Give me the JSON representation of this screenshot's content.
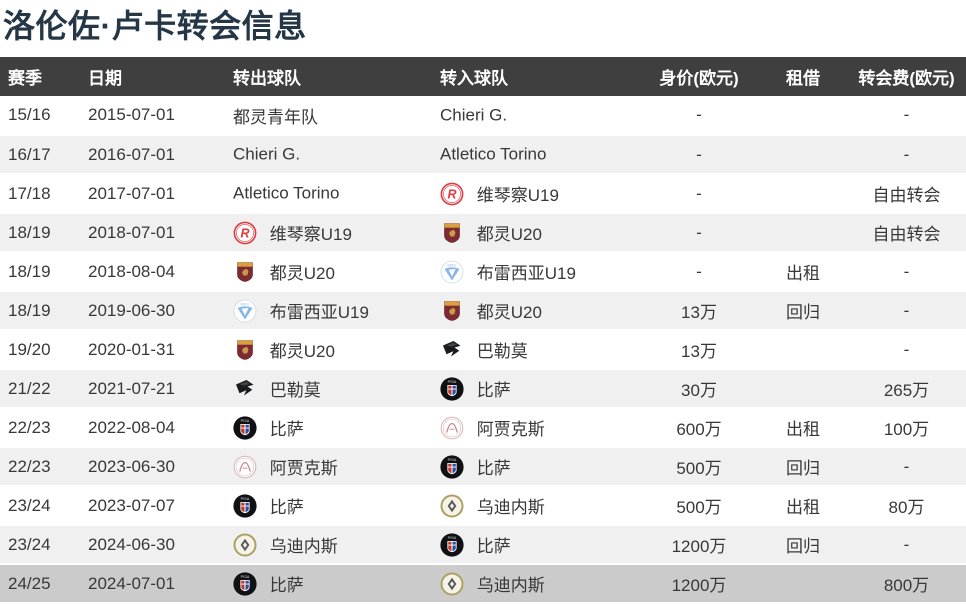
{
  "title": "洛伦佐·卢卡转会信息",
  "colors": {
    "header_bg": "#3f3f3f",
    "header_text": "#ffffff",
    "row_stripe": "#f0f0f0",
    "row_highlight": "#cbcbcb",
    "body_text": "#383838",
    "title_color": "#253746"
  },
  "table": {
    "columns": [
      "赛季",
      "日期",
      "转出球队",
      "转入球队",
      "身价(欧元)",
      "租借",
      "转会费(欧元)"
    ],
    "rows": [
      {
        "season": "15/16",
        "date": "2015-07-01",
        "from": {
          "name": "都灵青年队",
          "icon": "none"
        },
        "to": {
          "name": "Chieri G.",
          "icon": "none"
        },
        "value": "-",
        "loan": "",
        "fee": "-",
        "highlight": false
      },
      {
        "season": "16/17",
        "date": "2016-07-01",
        "from": {
          "name": "Chieri G.",
          "icon": "none"
        },
        "to": {
          "name": "Atletico Torino",
          "icon": "none"
        },
        "value": "-",
        "loan": "",
        "fee": "-",
        "highlight": false
      },
      {
        "season": "17/18",
        "date": "2017-07-01",
        "from": {
          "name": "Atletico Torino",
          "icon": "none"
        },
        "to": {
          "name": "维琴察U19",
          "icon": "vicenza"
        },
        "value": "-",
        "loan": "",
        "fee": "自由转会",
        "highlight": false
      },
      {
        "season": "18/19",
        "date": "2018-07-01",
        "from": {
          "name": "维琴察U19",
          "icon": "vicenza"
        },
        "to": {
          "name": "都灵U20",
          "icon": "torino"
        },
        "value": "-",
        "loan": "",
        "fee": "自由转会",
        "highlight": false
      },
      {
        "season": "18/19",
        "date": "2018-08-04",
        "from": {
          "name": "都灵U20",
          "icon": "torino"
        },
        "to": {
          "name": "布雷西亚U19",
          "icon": "brescia"
        },
        "value": "-",
        "loan": "出租",
        "fee": "-",
        "highlight": false
      },
      {
        "season": "18/19",
        "date": "2019-06-30",
        "from": {
          "name": "布雷西亚U19",
          "icon": "brescia"
        },
        "to": {
          "name": "都灵U20",
          "icon": "torino"
        },
        "value": "13万",
        "loan": "回归",
        "fee": "-",
        "highlight": false
      },
      {
        "season": "19/20",
        "date": "2020-01-31",
        "from": {
          "name": "都灵U20",
          "icon": "torino"
        },
        "to": {
          "name": "巴勒莫",
          "icon": "palermo"
        },
        "value": "13万",
        "loan": "",
        "fee": "-",
        "highlight": false
      },
      {
        "season": "21/22",
        "date": "2021-07-21",
        "from": {
          "name": "巴勒莫",
          "icon": "palermo"
        },
        "to": {
          "name": "比萨",
          "icon": "pisa"
        },
        "value": "30万",
        "loan": "",
        "fee": "265万",
        "highlight": false
      },
      {
        "season": "22/23",
        "date": "2022-08-04",
        "from": {
          "name": "比萨",
          "icon": "pisa"
        },
        "to": {
          "name": "阿贾克斯",
          "icon": "ajax"
        },
        "value": "600万",
        "loan": "出租",
        "fee": "100万",
        "highlight": false
      },
      {
        "season": "22/23",
        "date": "2023-06-30",
        "from": {
          "name": "阿贾克斯",
          "icon": "ajax"
        },
        "to": {
          "name": "比萨",
          "icon": "pisa"
        },
        "value": "500万",
        "loan": "回归",
        "fee": "-",
        "highlight": false
      },
      {
        "season": "23/24",
        "date": "2023-07-07",
        "from": {
          "name": "比萨",
          "icon": "pisa"
        },
        "to": {
          "name": "乌迪内斯",
          "icon": "udinese"
        },
        "value": "500万",
        "loan": "出租",
        "fee": "80万",
        "highlight": false
      },
      {
        "season": "23/24",
        "date": "2024-06-30",
        "from": {
          "name": "乌迪内斯",
          "icon": "udinese"
        },
        "to": {
          "name": "比萨",
          "icon": "pisa"
        },
        "value": "1200万",
        "loan": "回归",
        "fee": "-",
        "highlight": false
      },
      {
        "season": "24/25",
        "date": "2024-07-01",
        "from": {
          "name": "比萨",
          "icon": "pisa"
        },
        "to": {
          "name": "乌迪内斯",
          "icon": "udinese"
        },
        "value": "1200万",
        "loan": "",
        "fee": "800万",
        "highlight": true
      }
    ]
  }
}
